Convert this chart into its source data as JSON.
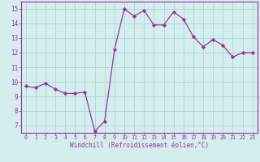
{
  "x": [
    0,
    1,
    2,
    3,
    4,
    5,
    6,
    7,
    8,
    9,
    10,
    11,
    12,
    13,
    14,
    15,
    16,
    17,
    18,
    19,
    20,
    21,
    22,
    23
  ],
  "y": [
    9.7,
    9.6,
    9.9,
    9.5,
    9.2,
    9.2,
    9.3,
    6.6,
    7.3,
    12.2,
    15.0,
    14.5,
    14.9,
    13.9,
    13.9,
    14.8,
    14.3,
    13.1,
    12.4,
    12.9,
    12.5,
    11.7,
    12.0,
    12.0
  ],
  "line_color": "#993399",
  "marker_color": "#993399",
  "bg_color": "#d4eeee",
  "grid_color": "#b0d8d8",
  "xlabel": "Windchill (Refroidissement éolien,°C)",
  "xlim": [
    -0.5,
    23.5
  ],
  "ylim": [
    6.5,
    15.5
  ],
  "yticks": [
    7,
    8,
    9,
    10,
    11,
    12,
    13,
    14,
    15
  ],
  "xticks": [
    0,
    1,
    2,
    3,
    4,
    5,
    6,
    7,
    8,
    9,
    10,
    11,
    12,
    13,
    14,
    15,
    16,
    17,
    18,
    19,
    20,
    21,
    22,
    23
  ],
  "tick_color": "#993399",
  "label_color": "#993399",
  "axis_color": "#993399",
  "spine_color": "#993399"
}
